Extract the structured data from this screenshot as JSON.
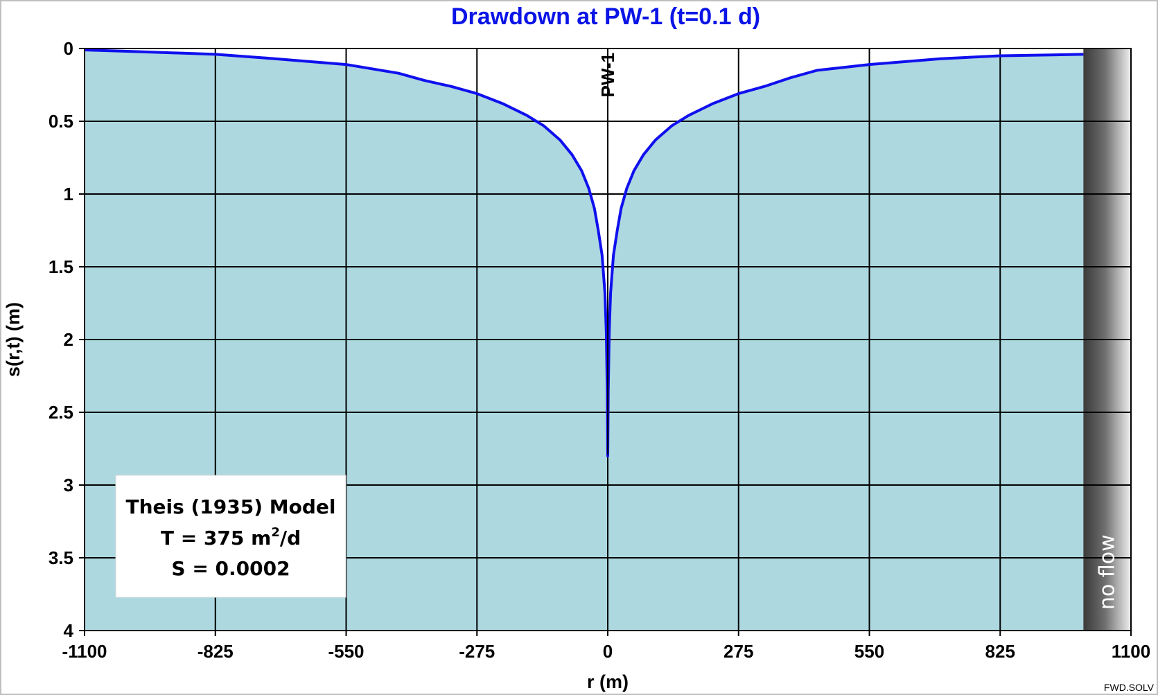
{
  "chart_data": {
    "type": "line",
    "title": "Drawdown at PW-1 (t=0.1 d)",
    "xlabel": "r (m)",
    "ylabel": "s(r,t) (m)",
    "xlim": [
      -1100,
      1100
    ],
    "ylim": [
      0,
      4
    ],
    "y_inverted": true,
    "x_ticks": [
      "-1100",
      "-825",
      "-550",
      "-275",
      "0",
      "275",
      "550",
      "825",
      "1100"
    ],
    "y_ticks": [
      "0",
      "0.5",
      "1",
      "1.5",
      "2",
      "2.5",
      "3",
      "3.5",
      "4"
    ],
    "grid": true,
    "fill_color": "#add8e0",
    "line_color": "#1010ee",
    "title_color": "#0a14e6",
    "series": [
      {
        "x": [
          -1100,
          -1000,
          -825,
          -700,
          -550,
          -440,
          -385,
          -330,
          -275,
          -220,
          -170,
          -135,
          -100,
          -75,
          -55,
          -40,
          -28,
          -20,
          -12,
          -6,
          -3,
          -1,
          0,
          1,
          3,
          6,
          12,
          20,
          28,
          40,
          55,
          75,
          100,
          135,
          170,
          220,
          275,
          330,
          385,
          440,
          550,
          700,
          825,
          1000,
          1000
        ],
        "y": [
          0.01,
          0.02,
          0.04,
          0.07,
          0.11,
          0.17,
          0.22,
          0.26,
          0.31,
          0.38,
          0.46,
          0.53,
          0.63,
          0.73,
          0.84,
          0.96,
          1.1,
          1.25,
          1.42,
          1.68,
          1.95,
          2.35,
          2.8,
          2.35,
          1.95,
          1.68,
          1.42,
          1.25,
          1.1,
          0.96,
          0.84,
          0.73,
          0.63,
          0.53,
          0.46,
          0.38,
          0.31,
          0.26,
          0.2,
          0.15,
          0.11,
          0.07,
          0.05,
          0.04,
          0.04
        ]
      }
    ],
    "well": {
      "label": "PW-1",
      "x": 0
    },
    "boundary": {
      "label": "no flow",
      "x_start": 1000,
      "x_end": 1100
    },
    "model_box": {
      "line1": "Theis (1935) Model",
      "line2_prefix": "T = 375 m",
      "line2_sup": "2",
      "line2_suffix": "/d",
      "line3": "S = 0.0002"
    },
    "credit": "FWD.SOLV"
  }
}
